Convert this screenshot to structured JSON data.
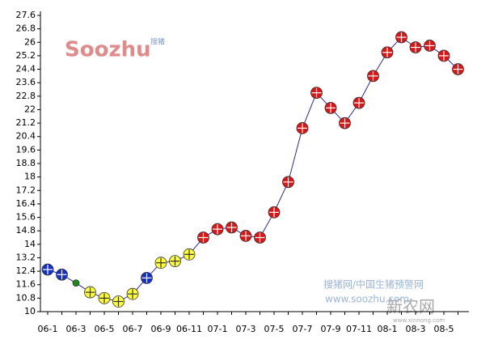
{
  "chart_data": {
    "type": "line",
    "categories": [
      "06-1",
      null,
      "06-3",
      null,
      "06-5",
      null,
      "06-7",
      null,
      "06-9",
      null,
      "06-11",
      null,
      "07-1",
      null,
      "07-3",
      null,
      "07-5",
      null,
      "07-7",
      null,
      "07-9",
      null,
      "07-11",
      null,
      "08-1",
      null,
      "08-3",
      null,
      "08-5",
      null
    ],
    "values": [
      12.5,
      12.2,
      11.7,
      11.15,
      10.8,
      10.6,
      11.05,
      12.0,
      12.9,
      13.0,
      13.4,
      14.4,
      14.9,
      15.0,
      14.5,
      14.4,
      15.9,
      17.7,
      20.9,
      23.0,
      22.1,
      21.2,
      22.4,
      24.0,
      25.4,
      26.3,
      25.7,
      25.8,
      25.2,
      24.4
    ],
    "color": "#2b2b9a",
    "marker_colors": [
      "#1530c8",
      "#1530c8",
      "#1a8a1a",
      "#ffff33",
      "#ffff33",
      "#ffff33",
      "#ffff33",
      "#1530c8",
      "#ffff33",
      "#ffff33",
      "#ffff33",
      "#e01414",
      "#e01414",
      "#e01414",
      "#e01414",
      "#e01414",
      "#e01414",
      "#e01414",
      "#e01414",
      "#e01414",
      "#e01414",
      "#e01414",
      "#e01414",
      "#e01414",
      "#e01414",
      "#e01414",
      "#e01414",
      "#e01414",
      "#e01414",
      "#e01414"
    ],
    "marker_sizes": [
      7,
      7,
      4,
      7,
      7,
      7,
      7,
      7,
      7,
      7,
      7,
      7,
      7,
      7,
      7,
      7,
      7,
      7,
      7,
      7,
      7,
      7,
      7,
      7,
      7,
      7,
      7,
      7,
      7,
      7
    ],
    "ylim": [
      10,
      27.6
    ],
    "yticks": [
      10,
      10.8,
      11.6,
      12.4,
      13.2,
      14,
      14.8,
      15.6,
      16.4,
      17.2,
      18,
      18.8,
      19.6,
      20.4,
      21.2,
      22,
      22.8,
      23.6,
      24.4,
      25.2,
      26,
      26.8,
      27.6
    ],
    "grid": false,
    "logo": {
      "text": "Soozhu",
      "subtext": "搜猪"
    },
    "watermarks": [
      "搜猪网/中国生猪预警网",
      "www.soozhu.com",
      "新农网",
      "www.xinnong.com"
    ]
  }
}
